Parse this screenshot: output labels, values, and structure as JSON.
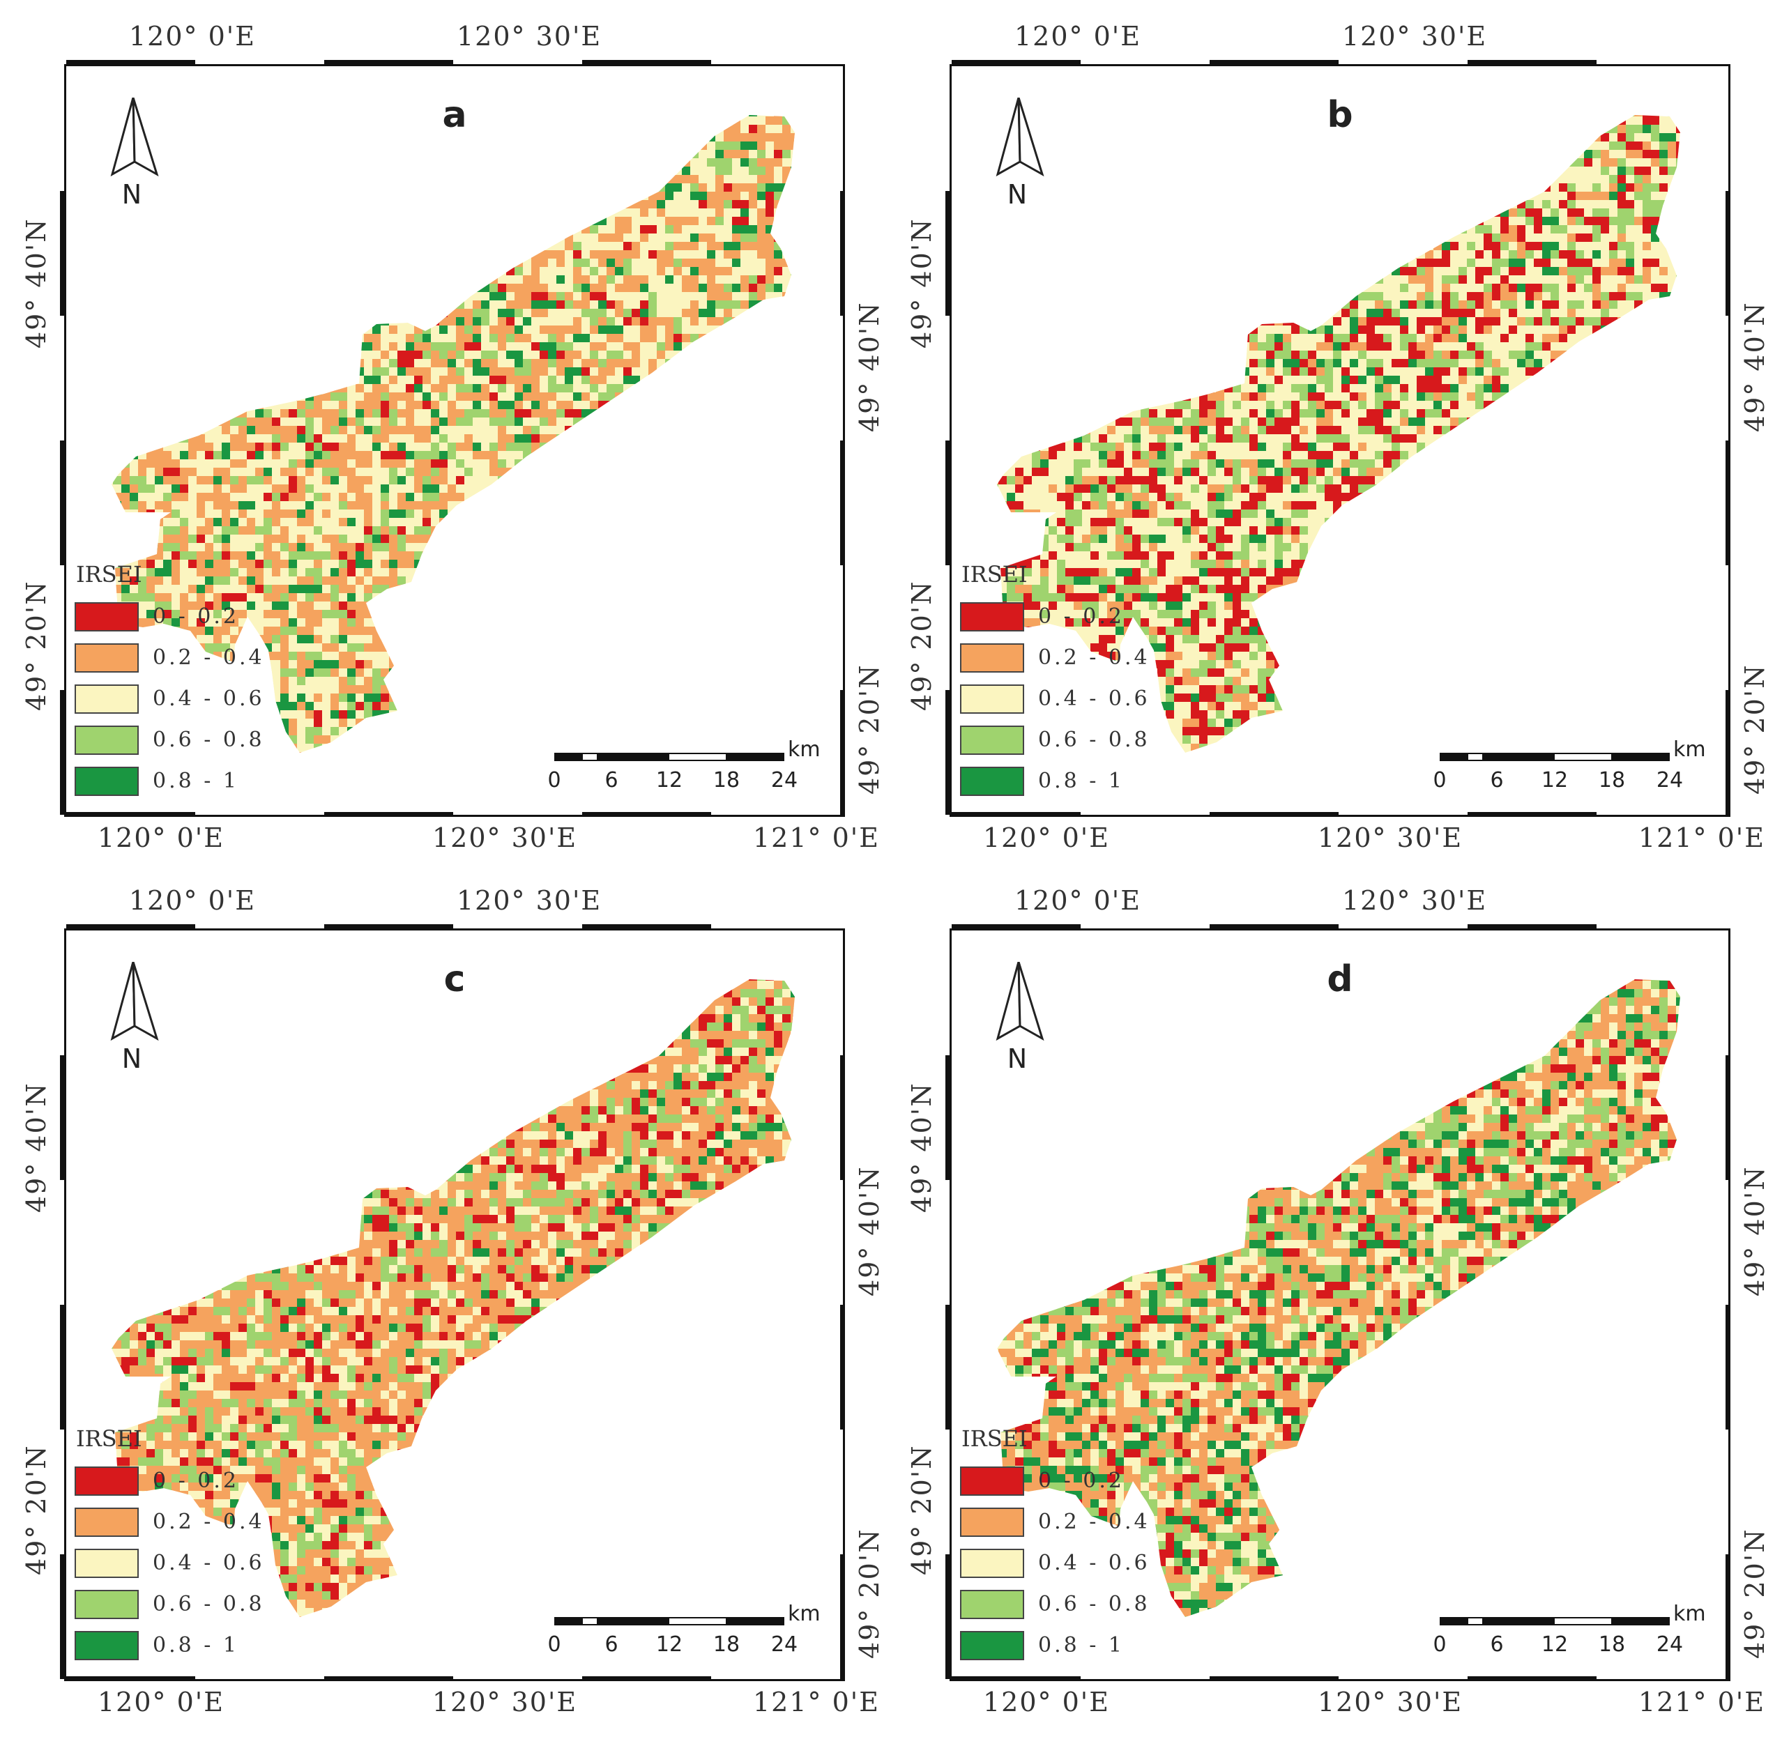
{
  "colors": {
    "class1": "#d7191c",
    "class2": "#f5a35e",
    "class3": "#fbf5c0",
    "class4": "#9fd36e",
    "class5": "#1a9641"
  },
  "graticule": {
    "lon_top_1": "120° 0'E",
    "lon_top_2": "120° 30'E",
    "lon_bottom_1": "120° 0'E",
    "lon_bottom_2": "120° 30'E",
    "lon_bottom_3": "121° 0'E",
    "lat_1": "49° 40'N",
    "lat_2": "49° 20'N"
  },
  "north_label": "N",
  "legend": {
    "title": "IRSEI",
    "classes": [
      "0 - 0.2",
      "0.2 - 0.4",
      "0.4 - 0.6",
      "0.6 - 0.8",
      "0.8 - 1"
    ]
  },
  "scalebar": {
    "unit": "km",
    "ticks": [
      "0",
      "6",
      "12",
      "18",
      "24"
    ]
  },
  "panels": [
    {
      "label": "a",
      "mix": [
        0.05,
        0.3,
        0.45,
        0.12,
        0.08
      ]
    },
    {
      "label": "b",
      "mix": [
        0.2,
        0.08,
        0.5,
        0.17,
        0.05
      ]
    },
    {
      "label": "c",
      "mix": [
        0.12,
        0.42,
        0.26,
        0.16,
        0.04
      ]
    },
    {
      "label": "d",
      "mix": [
        0.1,
        0.33,
        0.27,
        0.16,
        0.14
      ]
    }
  ]
}
